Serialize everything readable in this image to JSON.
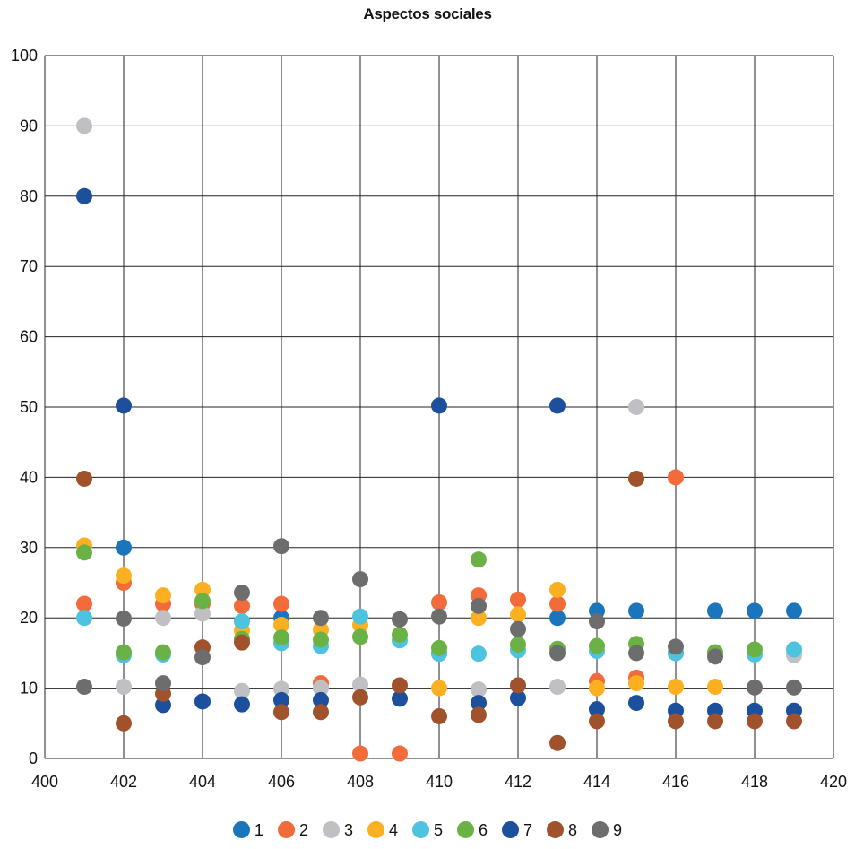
{
  "chart_data": {
    "type": "scatter",
    "title": "Aspectos sociales",
    "xlabel": "",
    "ylabel": "",
    "xlim": [
      400,
      420
    ],
    "ylim": [
      0,
      100
    ],
    "x_ticks": [
      400,
      402,
      404,
      406,
      408,
      410,
      412,
      414,
      416,
      418,
      420
    ],
    "y_ticks": [
      0,
      10,
      20,
      30,
      40,
      50,
      60,
      70,
      80,
      90,
      100
    ],
    "grid": true,
    "legend_position": "bottom",
    "series": [
      {
        "name": "1",
        "color": "#1b75bc",
        "points": [
          [
            402,
            30
          ],
          [
            406,
            20
          ],
          [
            410,
            15
          ],
          [
            413,
            20
          ],
          [
            414,
            21
          ],
          [
            415,
            21
          ],
          [
            416,
            15
          ],
          [
            417,
            21
          ],
          [
            418,
            21
          ],
          [
            419,
            21
          ]
        ]
      },
      {
        "name": "2",
        "color": "#f26b3a",
        "points": [
          [
            401,
            22
          ],
          [
            402,
            25
          ],
          [
            403,
            22
          ],
          [
            404,
            22
          ],
          [
            405,
            21.7
          ],
          [
            406,
            22
          ],
          [
            407,
            10.7
          ],
          [
            408,
            0.7
          ],
          [
            409,
            0.7
          ],
          [
            410,
            22.2
          ],
          [
            411,
            23.2
          ],
          [
            412,
            22.6
          ],
          [
            413,
            22
          ],
          [
            414,
            11
          ],
          [
            415,
            11.5
          ],
          [
            416,
            40
          ]
        ]
      },
      {
        "name": "3",
        "color": "#bfbfc4",
        "points": [
          [
            401,
            90
          ],
          [
            402,
            10.2
          ],
          [
            403,
            20
          ],
          [
            404,
            20.6
          ],
          [
            405,
            9.6
          ],
          [
            406,
            9.9
          ],
          [
            407,
            10
          ],
          [
            408,
            10.5
          ],
          [
            411,
            9.8
          ],
          [
            413,
            10.2
          ],
          [
            415,
            50
          ],
          [
            419,
            14.7
          ]
        ]
      },
      {
        "name": "4",
        "color": "#fbb021",
        "points": [
          [
            401,
            30.3
          ],
          [
            402,
            26
          ],
          [
            403,
            23.2
          ],
          [
            404,
            24
          ],
          [
            405,
            18.2
          ],
          [
            406,
            19
          ],
          [
            407,
            18.3
          ],
          [
            408,
            19
          ],
          [
            410,
            10
          ],
          [
            411,
            20
          ],
          [
            412,
            20.5
          ],
          [
            413,
            24
          ],
          [
            414,
            10
          ],
          [
            415,
            10.7
          ],
          [
            416,
            10.2
          ],
          [
            417,
            10.2
          ]
        ]
      },
      {
        "name": "5",
        "color": "#4dc3e0",
        "points": [
          [
            401,
            20
          ],
          [
            402,
            14.7
          ],
          [
            403,
            14.8
          ],
          [
            405,
            19.5
          ],
          [
            406,
            16.4
          ],
          [
            407,
            16
          ],
          [
            408,
            20.2
          ],
          [
            409,
            16.8
          ],
          [
            410,
            14.9
          ],
          [
            411,
            14.9
          ],
          [
            412,
            15.4
          ],
          [
            414,
            15.3
          ],
          [
            416,
            15
          ],
          [
            418,
            14.8
          ],
          [
            419,
            15.5
          ]
        ]
      },
      {
        "name": "6",
        "color": "#6ab245",
        "points": [
          [
            401,
            29.3
          ],
          [
            402,
            15.1
          ],
          [
            403,
            15.1
          ],
          [
            404,
            22.4
          ],
          [
            405,
            17
          ],
          [
            406,
            17.2
          ],
          [
            407,
            16.9
          ],
          [
            408,
            17.3
          ],
          [
            409,
            17.6
          ],
          [
            410,
            15.7
          ],
          [
            411,
            28.3
          ],
          [
            412,
            16.2
          ],
          [
            413,
            15.6
          ],
          [
            414,
            16
          ],
          [
            415,
            16.3
          ],
          [
            417,
            15.1
          ],
          [
            418,
            15.5
          ]
        ]
      },
      {
        "name": "7",
        "color": "#1c4f9c",
        "points": [
          [
            401,
            80
          ],
          [
            402,
            50.2
          ],
          [
            403,
            7.6
          ],
          [
            404,
            8.1
          ],
          [
            405,
            7.7
          ],
          [
            406,
            8.3
          ],
          [
            407,
            8.3
          ],
          [
            409,
            8.5
          ],
          [
            410,
            50.2
          ],
          [
            411,
            7.9
          ],
          [
            412,
            8.6
          ],
          [
            413,
            50.2
          ],
          [
            414,
            7
          ],
          [
            415,
            7.9
          ],
          [
            416,
            6.8
          ],
          [
            417,
            6.8
          ],
          [
            418,
            6.8
          ],
          [
            419,
            6.8
          ]
        ]
      },
      {
        "name": "8",
        "color": "#a0522d",
        "points": [
          [
            401,
            39.8
          ],
          [
            402,
            5
          ],
          [
            403,
            9.2
          ],
          [
            404,
            15.8
          ],
          [
            405,
            16.5
          ],
          [
            406,
            6.6
          ],
          [
            407,
            6.6
          ],
          [
            408,
            8.7
          ],
          [
            409,
            10.4
          ],
          [
            410,
            6
          ],
          [
            411,
            6.2
          ],
          [
            412,
            10.4
          ],
          [
            413,
            2.2
          ],
          [
            414,
            5.3
          ],
          [
            415,
            39.8
          ],
          [
            416,
            5.3
          ],
          [
            417,
            5.3
          ],
          [
            418,
            5.3
          ],
          [
            419,
            5.3
          ]
        ]
      },
      {
        "name": "9",
        "color": "#6d6d6d",
        "points": [
          [
            401,
            10.2
          ],
          [
            402,
            19.9
          ],
          [
            403,
            10.7
          ],
          [
            404,
            14.4
          ],
          [
            405,
            23.6
          ],
          [
            406,
            30.2
          ],
          [
            407,
            20
          ],
          [
            408,
            25.5
          ],
          [
            409,
            19.8
          ],
          [
            410,
            20.2
          ],
          [
            411,
            21.7
          ],
          [
            412,
            18.4
          ],
          [
            413,
            15
          ],
          [
            414,
            19.5
          ],
          [
            415,
            15
          ],
          [
            416,
            15.9
          ],
          [
            417,
            14.5
          ],
          [
            418,
            10.1
          ],
          [
            419,
            10.1
          ]
        ]
      }
    ]
  }
}
